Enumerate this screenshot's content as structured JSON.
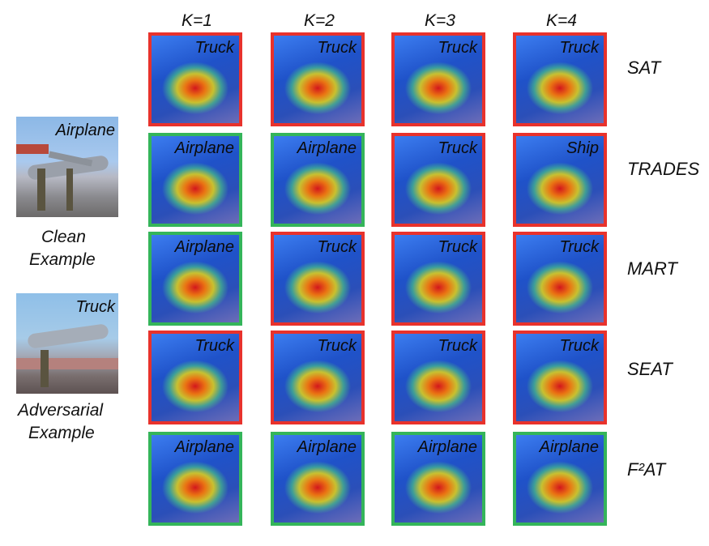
{
  "columns": [
    "K=1",
    "K=2",
    "K=3",
    "K=4"
  ],
  "examples": {
    "clean": {
      "tag": "Airplane",
      "caption_line1": "Clean",
      "caption_line2": "Example"
    },
    "adversarial": {
      "tag": "Truck",
      "caption_line1": "Adversarial",
      "caption_line2": "Example"
    }
  },
  "rows": [
    {
      "method": "SAT",
      "cells": [
        {
          "label": "Truck",
          "correct": false
        },
        {
          "label": "Truck",
          "correct": false
        },
        {
          "label": "Truck",
          "correct": false
        },
        {
          "label": "Truck",
          "correct": false
        }
      ]
    },
    {
      "method": "TRADES",
      "cells": [
        {
          "label": "Airplane",
          "correct": true
        },
        {
          "label": "Airplane",
          "correct": true
        },
        {
          "label": "Truck",
          "correct": false
        },
        {
          "label": "Ship",
          "correct": false
        }
      ]
    },
    {
      "method": "MART",
      "cells": [
        {
          "label": "Airplane",
          "correct": true
        },
        {
          "label": "Truck",
          "correct": false
        },
        {
          "label": "Truck",
          "correct": false
        },
        {
          "label": "Truck",
          "correct": false
        }
      ]
    },
    {
      "method": "SEAT",
      "cells": [
        {
          "label": "Truck",
          "correct": false
        },
        {
          "label": "Truck",
          "correct": false
        },
        {
          "label": "Truck",
          "correct": false
        },
        {
          "label": "Truck",
          "correct": false
        }
      ]
    },
    {
      "method": "F²AT",
      "cells": [
        {
          "label": "Airplane",
          "correct": true
        },
        {
          "label": "Airplane",
          "correct": true
        },
        {
          "label": "Airplane",
          "correct": true
        },
        {
          "label": "Airplane",
          "correct": true
        }
      ]
    }
  ],
  "colors": {
    "correct_border": "#34b55a",
    "wrong_border": "#e8322c"
  }
}
